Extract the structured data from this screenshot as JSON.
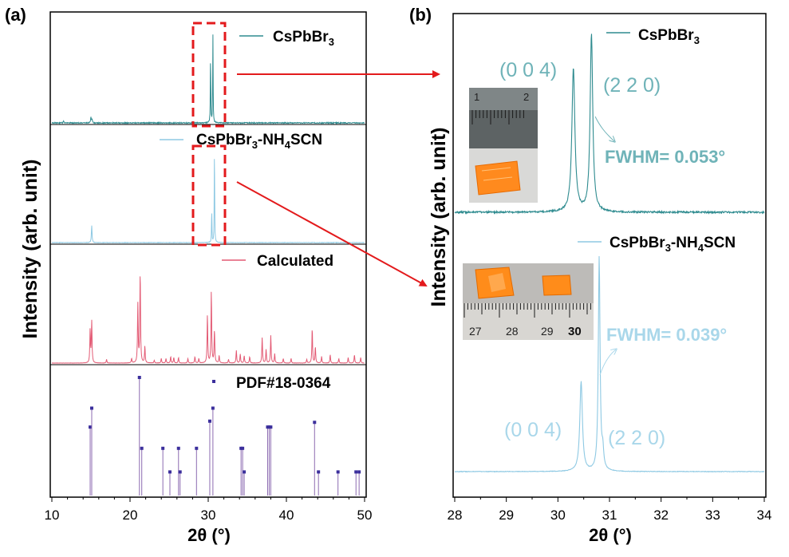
{
  "colors": {
    "teal": "#2e8b8f",
    "lightblue": "#8ec9e3",
    "pink": "#e35a74",
    "purple": "#8c6bb1",
    "dot": "#3b2f9c",
    "red": "#e31a1c",
    "peakTeal": "#6fb3b8",
    "peakBlue": "#a9d7ea"
  },
  "panel_a": {
    "label": "(a)",
    "ylabel": "Intensity (arb. unit)",
    "xlabel": "2θ (°)",
    "legends": {
      "s1_base": "CsPbBr",
      "s1_sub": "3",
      "s2_base": "CsPbBr",
      "s2_sub1": "3",
      "s2_mid": "-NH",
      "s2_sub2": "4",
      "s2_tail": "SCN",
      "s3": "Calculated",
      "s4": "PDF#18-0364"
    }
  },
  "panel_b": {
    "label": "(b)",
    "ylabel": "Intensity (arb. unit)",
    "xlabel": "2θ (°)",
    "legends": {
      "s1_base": "CsPbBr",
      "s1_sub": "3",
      "s2_base": "CsPbBr",
      "s2_sub1": "3",
      "s2_mid": "-NH",
      "s2_sub2": "4",
      "s2_tail": "SCN"
    },
    "annotations": {
      "top_004": "(0 0 4)",
      "top_220": "(2 2 0)",
      "top_fwhm": "FWHM= 0.053°",
      "bot_004": "(0 0 4)",
      "bot_220": "(2 2 0)",
      "bot_fwhm": "FWHM= 0.039°"
    },
    "inset_top": {
      "ruler_labels": [
        "1",
        "2"
      ]
    },
    "inset_bottom": {
      "ruler_labels": [
        "27",
        "28",
        "29",
        "30"
      ]
    }
  },
  "chart_data": [
    {
      "type": "line",
      "panel": "a",
      "title": "(a)",
      "xlabel": "2θ (°)",
      "ylabel": "Intensity (arb. unit)",
      "xlim": [
        10,
        50
      ],
      "xticks": [
        10,
        20,
        30,
        40,
        50
      ],
      "series": [
        {
          "name": "CsPbBr3",
          "peaks": [
            {
              "x": 11.5,
              "h": 0.02,
              "w": 0.05
            },
            {
              "x": 15.0,
              "h": 0.06,
              "w": 0.05
            },
            {
              "x": 15.15,
              "h": 0.04,
              "w": 0.05
            },
            {
              "x": 30.3,
              "h": 0.78,
              "w": 0.03
            },
            {
              "x": 30.6,
              "h": 1.0,
              "w": 0.03
            }
          ]
        },
        {
          "name": "CsPbBr3-NH4SCN",
          "peaks": [
            {
              "x": 15.1,
              "h": 0.17,
              "w": 0.05
            },
            {
              "x": 30.45,
              "h": 0.34,
              "w": 0.03
            },
            {
              "x": 30.8,
              "h": 1.0,
              "w": 0.03
            }
          ]
        },
        {
          "name": "Calculated",
          "peaks": [
            {
              "x": 14.9,
              "h": 0.36,
              "w": 0.05
            },
            {
              "x": 15.1,
              "h": 0.46,
              "w": 0.05
            },
            {
              "x": 17.0,
              "h": 0.04,
              "w": 0.05
            },
            {
              "x": 20.2,
              "h": 0.05,
              "w": 0.05
            },
            {
              "x": 21.0,
              "h": 0.64,
              "w": 0.05
            },
            {
              "x": 21.3,
              "h": 1.0,
              "w": 0.05
            },
            {
              "x": 21.9,
              "h": 0.18,
              "w": 0.05
            },
            {
              "x": 23.1,
              "h": 0.03,
              "w": 0.05
            },
            {
              "x": 24.0,
              "h": 0.05,
              "w": 0.05
            },
            {
              "x": 24.6,
              "h": 0.05,
              "w": 0.05
            },
            {
              "x": 25.2,
              "h": 0.07,
              "w": 0.05
            },
            {
              "x": 25.6,
              "h": 0.06,
              "w": 0.05
            },
            {
              "x": 26.2,
              "h": 0.06,
              "w": 0.05
            },
            {
              "x": 27.4,
              "h": 0.05,
              "w": 0.05
            },
            {
              "x": 28.3,
              "h": 0.07,
              "w": 0.05
            },
            {
              "x": 28.8,
              "h": 0.05,
              "w": 0.05
            },
            {
              "x": 29.9,
              "h": 0.52,
              "w": 0.05
            },
            {
              "x": 30.4,
              "h": 0.78,
              "w": 0.05
            },
            {
              "x": 30.8,
              "h": 0.36,
              "w": 0.05
            },
            {
              "x": 31.4,
              "h": 0.08,
              "w": 0.05
            },
            {
              "x": 32.6,
              "h": 0.04,
              "w": 0.05
            },
            {
              "x": 33.6,
              "h": 0.14,
              "w": 0.05
            },
            {
              "x": 34.1,
              "h": 0.1,
              "w": 0.05
            },
            {
              "x": 34.6,
              "h": 0.08,
              "w": 0.05
            },
            {
              "x": 35.3,
              "h": 0.07,
              "w": 0.05
            },
            {
              "x": 36.9,
              "h": 0.28,
              "w": 0.05
            },
            {
              "x": 37.4,
              "h": 0.15,
              "w": 0.05
            },
            {
              "x": 38.0,
              "h": 0.3,
              "w": 0.05
            },
            {
              "x": 38.5,
              "h": 0.1,
              "w": 0.05
            },
            {
              "x": 39.6,
              "h": 0.05,
              "w": 0.05
            },
            {
              "x": 40.6,
              "h": 0.05,
              "w": 0.05
            },
            {
              "x": 42.6,
              "h": 0.04,
              "w": 0.05
            },
            {
              "x": 43.3,
              "h": 0.38,
              "w": 0.05
            },
            {
              "x": 43.7,
              "h": 0.18,
              "w": 0.05
            },
            {
              "x": 44.5,
              "h": 0.07,
              "w": 0.05
            },
            {
              "x": 45.6,
              "h": 0.09,
              "w": 0.05
            },
            {
              "x": 46.7,
              "h": 0.05,
              "w": 0.05
            },
            {
              "x": 47.9,
              "h": 0.06,
              "w": 0.05
            },
            {
              "x": 48.7,
              "h": 0.09,
              "w": 0.05
            },
            {
              "x": 49.5,
              "h": 0.06,
              "w": 0.05
            }
          ]
        },
        {
          "name": "PDF#18-0364",
          "sticks": [
            {
              "x": 14.9,
              "h": 0.58
            },
            {
              "x": 15.1,
              "h": 0.74
            },
            {
              "x": 21.2,
              "h": 1.0
            },
            {
              "x": 21.5,
              "h": 0.4
            },
            {
              "x": 24.2,
              "h": 0.4
            },
            {
              "x": 25.1,
              "h": 0.2
            },
            {
              "x": 26.2,
              "h": 0.4
            },
            {
              "x": 26.4,
              "h": 0.2
            },
            {
              "x": 28.5,
              "h": 0.4
            },
            {
              "x": 30.2,
              "h": 0.63
            },
            {
              "x": 30.6,
              "h": 0.74
            },
            {
              "x": 34.2,
              "h": 0.4
            },
            {
              "x": 34.4,
              "h": 0.4
            },
            {
              "x": 34.6,
              "h": 0.2
            },
            {
              "x": 37.6,
              "h": 0.58
            },
            {
              "x": 37.8,
              "h": 0.58
            },
            {
              "x": 38.0,
              "h": 0.58
            },
            {
              "x": 43.6,
              "h": 0.62
            },
            {
              "x": 44.1,
              "h": 0.2
            },
            {
              "x": 46.6,
              "h": 0.2
            },
            {
              "x": 48.9,
              "h": 0.2
            },
            {
              "x": 49.3,
              "h": 0.2
            }
          ]
        }
      ]
    },
    {
      "type": "line",
      "panel": "b",
      "title": "(b)",
      "xlabel": "2θ (°)",
      "ylabel": "Intensity (arb. unit)",
      "xlim": [
        28,
        34
      ],
      "xticks": [
        28,
        29,
        30,
        31,
        32,
        33,
        34
      ],
      "series": [
        {
          "name": "CsPbBr3",
          "peaks": [
            {
              "x": 30.3,
              "h": 0.8,
              "w": 0.035
            },
            {
              "x": 30.65,
              "h": 1.0,
              "w": 0.03
            }
          ]
        },
        {
          "name": "CsPbBr3-NH4SCN",
          "peaks": [
            {
              "x": 30.45,
              "h": 0.42,
              "w": 0.03
            },
            {
              "x": 30.8,
              "h": 1.0,
              "w": 0.02
            },
            {
              "x": 30.87,
              "h": 0.08,
              "w": 0.02
            }
          ]
        }
      ],
      "annotations": [
        {
          "text": "(0 0 4)",
          "series": "CsPbBr3",
          "x": 30.3
        },
        {
          "text": "(2 2 0)",
          "series": "CsPbBr3",
          "x": 30.65
        },
        {
          "text": "FWHM= 0.053°",
          "series": "CsPbBr3"
        },
        {
          "text": "(0 0 4)",
          "series": "CsPbBr3-NH4SCN",
          "x": 30.45
        },
        {
          "text": "(2 2 0)",
          "series": "CsPbBr3-NH4SCN",
          "x": 30.8
        },
        {
          "text": "FWHM= 0.039°",
          "series": "CsPbBr3-NH4SCN"
        }
      ]
    }
  ]
}
